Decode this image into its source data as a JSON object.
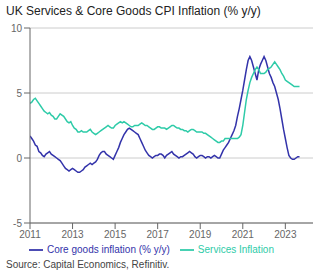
{
  "chart_data": {
    "type": "line",
    "title": "UK Services & Core Goods CPI Inflation (% y/y)",
    "annotations": [
      "Source: Capital Economics, Refinitiv."
    ],
    "xlim": [
      2011.0,
      2024.3
    ],
    "xticks": [
      2011,
      2013,
      2015,
      2017,
      2019,
      2021,
      2023
    ],
    "ylim": [
      -5,
      10
    ],
    "yticks": [
      -5,
      0,
      5,
      10
    ],
    "grid": true,
    "legend": "bottom",
    "x": [
      2011,
      2011.0833,
      2011.1667,
      2011.25,
      2011.3333,
      2011.4167,
      2011.5,
      2011.5833,
      2011.6667,
      2011.75,
      2011.8333,
      2011.9167,
      2012,
      2012.0833,
      2012.1667,
      2012.25,
      2012.3333,
      2012.4167,
      2012.5,
      2012.5833,
      2012.6667,
      2012.75,
      2012.8333,
      2012.9167,
      2013,
      2013.0833,
      2013.1667,
      2013.25,
      2013.3333,
      2013.4167,
      2013.5,
      2013.5833,
      2013.6667,
      2013.75,
      2013.8333,
      2013.9167,
      2014,
      2014.0833,
      2014.1667,
      2014.25,
      2014.3333,
      2014.4167,
      2014.5,
      2014.5833,
      2014.6667,
      2014.75,
      2014.8333,
      2014.9167,
      2015,
      2015.0833,
      2015.1667,
      2015.25,
      2015.3333,
      2015.4167,
      2015.5,
      2015.5833,
      2015.6667,
      2015.75,
      2015.8333,
      2015.9167,
      2016,
      2016.0833,
      2016.1667,
      2016.25,
      2016.3333,
      2016.4167,
      2016.5,
      2016.5833,
      2016.6667,
      2016.75,
      2016.8333,
      2016.9167,
      2017,
      2017.0833,
      2017.1667,
      2017.25,
      2017.3333,
      2017.4167,
      2017.5,
      2017.5833,
      2017.6667,
      2017.75,
      2017.8333,
      2017.9167,
      2018,
      2018.0833,
      2018.1667,
      2018.25,
      2018.3333,
      2018.4167,
      2018.5,
      2018.5833,
      2018.6667,
      2018.75,
      2018.8333,
      2018.9167,
      2019,
      2019.0833,
      2019.1667,
      2019.25,
      2019.3333,
      2019.4167,
      2019.5,
      2019.5833,
      2019.6667,
      2019.75,
      2019.8333,
      2019.9167,
      2020,
      2020.0833,
      2020.1667,
      2020.25,
      2020.3333,
      2020.4167,
      2020.5,
      2020.5833,
      2020.6667,
      2020.75,
      2020.8333,
      2020.9167,
      2021,
      2021.0833,
      2021.1667,
      2021.25,
      2021.3333,
      2021.4167,
      2021.5,
      2021.5833,
      2021.6667,
      2021.75,
      2021.8333,
      2021.9167,
      2022,
      2022.0833,
      2022.1667,
      2022.25,
      2022.3333,
      2022.4167,
      2022.5,
      2022.5833,
      2022.6667,
      2022.75,
      2022.8333,
      2022.9167,
      2023,
      2023.0833,
      2023.1667,
      2023.25,
      2023.3333,
      2023.4167,
      2023.5,
      2023.5833,
      2023.6667
    ],
    "series": [
      {
        "name": "Core goods inflation (% y/y)",
        "color": "#3333aa",
        "values": [
          1.7,
          1.5,
          1.3,
          1.0,
          0.9,
          0.5,
          0.4,
          0.2,
          0.1,
          0.3,
          0.4,
          0.5,
          0.3,
          0.2,
          0.1,
          0.0,
          -0.1,
          -0.2,
          -0.4,
          -0.6,
          -0.8,
          -0.9,
          -1.0,
          -0.9,
          -0.8,
          -0.9,
          -1.0,
          -1.1,
          -1.1,
          -1.0,
          -0.9,
          -0.7,
          -0.6,
          -0.5,
          -0.4,
          -0.5,
          -0.4,
          -0.3,
          -0.1,
          0.2,
          0.4,
          0.5,
          0.5,
          0.3,
          0.2,
          0.1,
          0.0,
          -0.1,
          0.2,
          0.5,
          0.8,
          1.2,
          1.5,
          1.8,
          2.0,
          2.2,
          2.3,
          2.2,
          2.1,
          2.0,
          1.9,
          1.8,
          1.5,
          1.2,
          0.9,
          0.6,
          0.4,
          0.2,
          0.1,
          0.0,
          0.1,
          0.2,
          0.2,
          0.3,
          0.3,
          0.2,
          0.0,
          0.2,
          0.3,
          0.4,
          0.5,
          0.3,
          0.2,
          0.1,
          0.0,
          0.1,
          0.1,
          0.2,
          0.3,
          0.4,
          0.5,
          0.4,
          0.3,
          0.1,
          0.0,
          0.1,
          0.2,
          0.2,
          0.1,
          0.0,
          0.1,
          0.1,
          0.0,
          0.1,
          0.2,
          0.1,
          0.0,
          0.0,
          0.3,
          0.6,
          0.8,
          1.0,
          1.2,
          1.5,
          1.8,
          2.1,
          2.5,
          3.2,
          3.8,
          4.5,
          5.2,
          6.0,
          6.8,
          7.5,
          7.8,
          7.5,
          7.0,
          6.5,
          6.0,
          6.8,
          7.2,
          7.5,
          7.8,
          7.5,
          7.0,
          6.5,
          6.2,
          5.8,
          5.5,
          5.0,
          4.5,
          3.8,
          3.0,
          2.2,
          1.5,
          0.8,
          0.2,
          0.0,
          -0.1,
          -0.1,
          0.0,
          0.1,
          0.1
        ]
      },
      {
        "name": "Services Inflation",
        "color": "#2ecba8",
        "values": [
          4.2,
          4.3,
          4.5,
          4.6,
          4.4,
          4.2,
          4.0,
          3.8,
          3.6,
          3.5,
          3.4,
          3.5,
          3.3,
          3.2,
          3.0,
          3.0,
          3.2,
          3.4,
          3.3,
          3.2,
          3.0,
          2.8,
          2.7,
          2.8,
          2.5,
          2.3,
          2.2,
          2.0,
          2.0,
          2.1,
          2.0,
          2.0,
          2.0,
          2.1,
          2.2,
          2.0,
          1.9,
          1.8,
          1.9,
          2.0,
          2.1,
          2.2,
          2.3,
          2.4,
          2.5,
          2.4,
          2.3,
          2.3,
          2.5,
          2.6,
          2.7,
          2.8,
          2.7,
          2.8,
          2.7,
          2.6,
          2.5,
          2.4,
          2.4,
          2.5,
          2.5,
          2.5,
          2.6,
          2.7,
          2.6,
          2.5,
          2.5,
          2.4,
          2.3,
          2.2,
          2.2,
          2.3,
          2.4,
          2.4,
          2.3,
          2.3,
          2.3,
          2.2,
          2.3,
          2.4,
          2.5,
          2.5,
          2.4,
          2.3,
          2.3,
          2.2,
          2.2,
          2.1,
          2.1,
          2.0,
          2.1,
          2.2,
          2.2,
          2.1,
          2.0,
          2.0,
          2.0,
          2.0,
          1.9,
          1.9,
          1.8,
          1.7,
          1.6,
          1.5,
          1.4,
          1.3,
          1.2,
          1.2,
          1.3,
          1.3,
          1.5,
          1.5,
          1.5,
          1.5,
          1.5,
          1.5,
          1.5,
          1.5,
          1.6,
          1.8,
          2.5,
          3.5,
          4.5,
          5.2,
          5.8,
          6.2,
          6.5,
          6.8,
          7.0,
          6.8,
          6.5,
          6.5,
          6.5,
          6.6,
          6.8,
          6.9,
          7.0,
          7.2,
          7.4,
          7.2,
          7.0,
          6.8,
          6.5,
          6.3,
          6.0,
          5.9,
          5.8,
          5.7,
          5.6,
          5.5,
          5.5,
          5.5,
          5.5
        ]
      }
    ]
  }
}
